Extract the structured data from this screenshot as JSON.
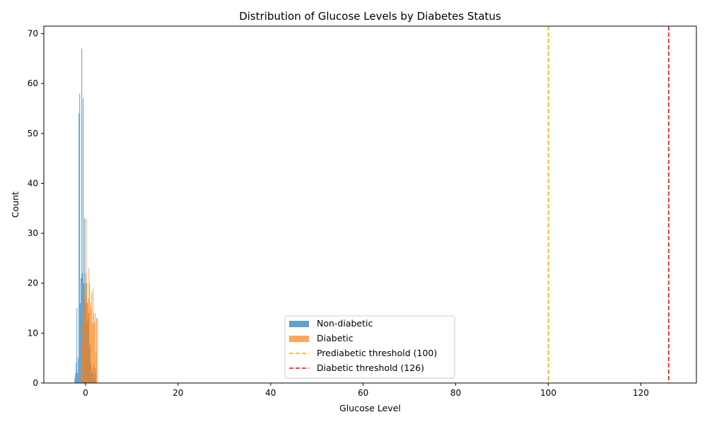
{
  "chart_data": {
    "type": "bar",
    "title": "Distribution of Glucose Levels by Diabetes Status",
    "xlabel": "Glucose Level",
    "ylabel": "Count",
    "xlim": [
      -9,
      132
    ],
    "ylim": [
      0,
      71.5
    ],
    "xticks": [
      0,
      20,
      40,
      60,
      80,
      100,
      120
    ],
    "yticks": [
      0,
      10,
      20,
      30,
      40,
      50,
      60,
      70
    ],
    "grid": false,
    "legend_position": "lower center",
    "bin_width": 0.16,
    "series": [
      {
        "name": "Non-diabetic",
        "color": "#1f77b4",
        "opacity": 0.7,
        "x": [
          -2.3,
          -2.15,
          -2.0,
          -1.85,
          -1.7,
          -1.55,
          -1.4,
          -1.25,
          -1.1,
          -0.95,
          -0.8,
          -0.65,
          -0.5,
          -0.35,
          -0.2,
          -0.05,
          0.1,
          0.25,
          0.4,
          0.55,
          0.7,
          0.85,
          1.0,
          1.15,
          1.3,
          1.45,
          1.6,
          1.75,
          1.9,
          2.05,
          2.2
        ],
        "values": [
          1,
          2,
          4,
          15,
          2,
          5,
          54,
          58,
          16,
          21,
          67,
          22,
          57,
          20,
          33,
          16,
          20,
          12,
          16,
          13,
          14,
          7,
          8,
          4,
          2,
          3,
          2,
          4,
          1,
          3,
          2
        ]
      },
      {
        "name": "Diabetic",
        "color": "#ff7f0e",
        "opacity": 0.7,
        "x": [
          -0.9,
          -0.75,
          -0.6,
          -0.45,
          -0.3,
          -0.15,
          0.0,
          0.15,
          0.3,
          0.45,
          0.6,
          0.75,
          0.9,
          1.05,
          1.2,
          1.35,
          1.5,
          1.65,
          1.8,
          1.95,
          2.1,
          2.25,
          2.4,
          2.55
        ],
        "values": [
          3,
          8,
          12,
          14,
          16,
          18,
          22,
          33,
          20,
          15,
          17,
          23,
          20,
          16,
          15,
          18,
          12,
          19,
          14,
          12,
          14,
          6,
          13,
          13
        ]
      }
    ],
    "reference_lines": [
      {
        "name": "Prediabetic threshold (100)",
        "x": 100,
        "color": "#ffa500",
        "style": "dashed"
      },
      {
        "name": "Diabetic threshold (126)",
        "x": 126,
        "color": "#ff0000",
        "style": "dashed"
      }
    ]
  }
}
